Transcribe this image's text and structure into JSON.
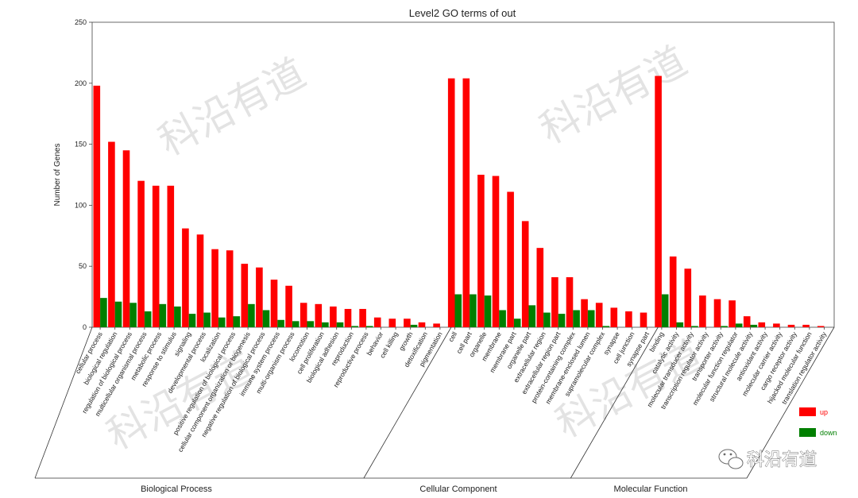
{
  "chart_data": {
    "type": "bar",
    "title": "Level2 GO terms of out",
    "ylabel": "Number of Genes",
    "ylim": [
      0,
      250
    ],
    "yticks": [
      0,
      50,
      100,
      150,
      200,
      250
    ],
    "colors": {
      "up": "#ff0000",
      "down": "#007f00"
    },
    "legend_position": "right",
    "groups": [
      {
        "name": "Biological Process",
        "categories": [
          {
            "name": "cellular process",
            "up": 198,
            "down": 24
          },
          {
            "name": "biological regulation",
            "up": 152,
            "down": 21
          },
          {
            "name": "regulation of biological process",
            "up": 145,
            "down": 20
          },
          {
            "name": "multicellular organismal process",
            "up": 120,
            "down": 13
          },
          {
            "name": "metabolic process",
            "up": 116,
            "down": 19
          },
          {
            "name": "response to stimulus",
            "up": 116,
            "down": 17
          },
          {
            "name": "signaling",
            "up": 81,
            "down": 11
          },
          {
            "name": "developmental process",
            "up": 76,
            "down": 12
          },
          {
            "name": "localization",
            "up": 64,
            "down": 8
          },
          {
            "name": "positive regulation of biological process",
            "up": 63,
            "down": 9
          },
          {
            "name": "cellular component organization or biogenesis",
            "up": 52,
            "down": 19
          },
          {
            "name": "negative regulation of biological process",
            "up": 49,
            "down": 14
          },
          {
            "name": "immune system process",
            "up": 39,
            "down": 6
          },
          {
            "name": "multi-organism process",
            "up": 34,
            "down": 5
          },
          {
            "name": "locomotion",
            "up": 20,
            "down": 5
          },
          {
            "name": "cell proliferation",
            "up": 19,
            "down": 4
          },
          {
            "name": "biological adhesion",
            "up": 17,
            "down": 4
          },
          {
            "name": "reproduction",
            "up": 15,
            "down": 1
          },
          {
            "name": "reproductive process",
            "up": 15,
            "down": 1
          },
          {
            "name": "behavior",
            "up": 8,
            "down": 0
          },
          {
            "name": "cell killing",
            "up": 7,
            "down": 0
          },
          {
            "name": "growth",
            "up": 7,
            "down": 2
          },
          {
            "name": "detoxification",
            "up": 4,
            "down": 0
          },
          {
            "name": "pigmentation",
            "up": 3,
            "down": 0
          }
        ]
      },
      {
        "name": "Cellular Component",
        "categories": [
          {
            "name": "cell",
            "up": 204,
            "down": 27
          },
          {
            "name": "cell part",
            "up": 204,
            "down": 27
          },
          {
            "name": "organelle",
            "up": 125,
            "down": 26
          },
          {
            "name": "membrane",
            "up": 124,
            "down": 14
          },
          {
            "name": "membrane part",
            "up": 111,
            "down": 7
          },
          {
            "name": "organelle part",
            "up": 87,
            "down": 18
          },
          {
            "name": "extracellular region",
            "up": 65,
            "down": 12
          },
          {
            "name": "extracellular region part",
            "up": 41,
            "down": 11
          },
          {
            "name": "protein-containing complex",
            "up": 41,
            "down": 14
          },
          {
            "name": "membrane-enclosed lumen",
            "up": 23,
            "down": 14
          },
          {
            "name": "supramolecular complex",
            "up": 20,
            "down": 1
          },
          {
            "name": "synapse",
            "up": 16,
            "down": 0
          },
          {
            "name": "cell junction",
            "up": 13,
            "down": 0
          },
          {
            "name": "synapse part",
            "up": 12,
            "down": 0
          }
        ]
      },
      {
        "name": "Molecular Function",
        "categories": [
          {
            "name": "binding",
            "up": 206,
            "down": 27
          },
          {
            "name": "catalytic activity",
            "up": 58,
            "down": 4
          },
          {
            "name": "molecular transducer activity",
            "up": 48,
            "down": 1
          },
          {
            "name": "transcription regulator activity",
            "up": 26,
            "down": 0
          },
          {
            "name": "transporter activity",
            "up": 23,
            "down": 1
          },
          {
            "name": "molecular function regulator",
            "up": 22,
            "down": 3
          },
          {
            "name": "structural molecule activity",
            "up": 9,
            "down": 2
          },
          {
            "name": "antioxidant activity",
            "up": 4,
            "down": 0
          },
          {
            "name": "molecular carrier activity",
            "up": 3,
            "down": 0
          },
          {
            "name": "cargo receptor activity",
            "up": 2,
            "down": 0
          },
          {
            "name": "hijacked molecular function",
            "up": 2,
            "down": 0
          },
          {
            "name": "translation regulator activity",
            "up": 1,
            "down": 0
          }
        ]
      }
    ],
    "legend": [
      {
        "key": "up",
        "label": "up"
      },
      {
        "key": "down",
        "label": "down"
      }
    ]
  },
  "watermark": "科沿有道",
  "brand": {
    "icon": "wechat-icon",
    "text": "科沿有道"
  }
}
